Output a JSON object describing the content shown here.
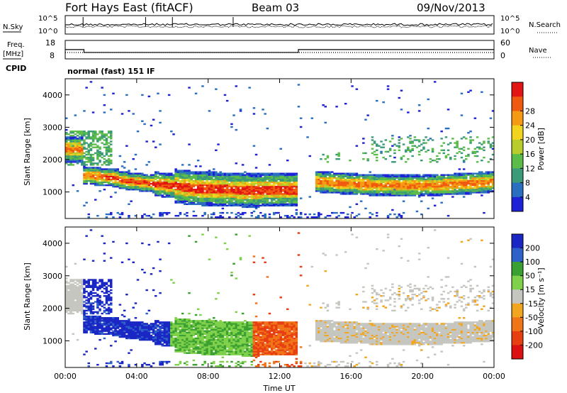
{
  "header": {
    "station": "Fort Hays East (fitACF)",
    "beam": "Beam 03",
    "date": "09/Nov/2013"
  },
  "top_panels": {
    "nsky_label": "N.Sky",
    "nsearch_label": "N.Search",
    "nsky_ticks": [
      "10^5",
      "10^0"
    ],
    "nsearch_ticks": [
      "10^5",
      "10^0"
    ],
    "freq_label_1": "Freq.",
    "freq_label_2": "[MHz]",
    "freq_ticks": [
      "18",
      "8"
    ],
    "nave_label": "Nave",
    "nave_ticks": [
      "60",
      "0"
    ],
    "cpid_label": "CPID",
    "cpid_text": "normal (fast) 151 IF"
  },
  "chart_data": [
    {
      "type": "heatmap",
      "quantity": "Power",
      "ylabel": "Slant Range [km]",
      "ylim": [
        180,
        4500
      ],
      "yticks": [
        "1000",
        "2000",
        "3000",
        "4000"
      ],
      "colorbar_label": "Power [dB]",
      "colorbar_ticks": [
        "4",
        "8",
        "12",
        "16",
        "20",
        "24",
        "28"
      ],
      "colors": [
        "#1e22d6",
        "#2a6fbf",
        "#3b9a78",
        "#5cbc4a",
        "#b8cc2c",
        "#f2d31e",
        "#f59a12",
        "#ef5a10",
        "#e31414"
      ],
      "echo_regions": [
        {
          "t": [
            1.0,
            13.0
          ],
          "range": [
            900,
            1900
          ],
          "note": "main band 1"
        },
        {
          "t": [
            14.0,
            24.0
          ],
          "range": [
            950,
            1750
          ],
          "note": "main band 2"
        },
        {
          "t": [
            0.0,
            2.5
          ],
          "range": [
            1800,
            2800
          ],
          "note": "upper echoes"
        },
        {
          "t": [
            17.0,
            24.0
          ],
          "range": [
            2200,
            2700
          ],
          "note": "upper echoes late"
        }
      ]
    },
    {
      "type": "heatmap",
      "quantity": "Velocity",
      "xlabel": "Time UT",
      "ylabel": "Slant Range [km]",
      "ylim": [
        180,
        4500
      ],
      "yticks": [
        "1000",
        "2000",
        "3000",
        "4000"
      ],
      "xticks": [
        "00:00",
        "04:00",
        "08:00",
        "12:00",
        "16:00",
        "20:00",
        "00:00"
      ],
      "xlim_hours": [
        0,
        24
      ],
      "colorbar_label": "Velocity [m s⁻¹]",
      "colorbar_ticks": [
        "200",
        "100",
        "50",
        "15",
        "-15",
        "-50",
        "-100",
        "-200"
      ],
      "colors": [
        "#1b27c4",
        "#2e62c9",
        "#3aa031",
        "#7fd04a",
        "#c6c6c0",
        "#f2a51e",
        "#f07518",
        "#e83f12",
        "#dc1010"
      ],
      "echo_regions": [
        {
          "t": [
            1.0,
            6.0
          ],
          "range": [
            900,
            2900
          ],
          "note": "positive velocity"
        },
        {
          "t": [
            6.0,
            10.5
          ],
          "range": [
            900,
            1800
          ],
          "note": "green"
        },
        {
          "t": [
            10.5,
            13.0
          ],
          "range": [
            1000,
            1700
          ],
          "note": "negative velocity"
        },
        {
          "t": [
            14.0,
            24.0
          ],
          "range": [
            950,
            2100
          ],
          "note": "near zero"
        }
      ]
    }
  ]
}
